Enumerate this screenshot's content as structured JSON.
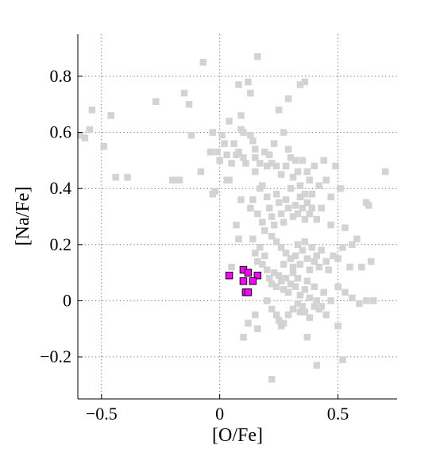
{
  "chart_data": {
    "type": "scatter",
    "title": "",
    "xlabel": "[O/Fe]",
    "ylabel": "[Na/Fe]",
    "xlim": [
      -0.6,
      0.75
    ],
    "ylim": [
      -0.35,
      0.95
    ],
    "grid": true,
    "legend": "none",
    "x_ticks": [
      {
        "value": -0.5,
        "label": "−0.5"
      },
      {
        "value": 0,
        "label": "0"
      },
      {
        "value": 0.5,
        "label": "0.5"
      }
    ],
    "y_ticks": [
      {
        "value": -0.2,
        "label": "−0.2"
      },
      {
        "value": 0,
        "label": "0"
      },
      {
        "value": 0.2,
        "label": "0.2"
      },
      {
        "value": 0.4,
        "label": "0.4"
      },
      {
        "value": 0.6,
        "label": "0.6"
      },
      {
        "value": 0.8,
        "label": "0.8"
      }
    ],
    "series": [
      {
        "color": "#d3d3d3",
        "marker": "square",
        "points": [
          [
            -0.59,
            0.59
          ],
          [
            -0.57,
            0.58
          ],
          [
            -0.55,
            0.61
          ],
          [
            -0.54,
            0.68
          ],
          [
            -0.49,
            0.55
          ],
          [
            -0.46,
            0.66
          ],
          [
            -0.44,
            0.44
          ],
          [
            -0.39,
            0.44
          ],
          [
            -0.27,
            0.71
          ],
          [
            -0.2,
            0.43
          ],
          [
            -0.18,
            0.43
          ],
          [
            -0.17,
            0.43
          ],
          [
            -0.15,
            0.74
          ],
          [
            -0.13,
            0.7
          ],
          [
            -0.12,
            0.59
          ],
          [
            -0.08,
            0.46
          ],
          [
            -0.07,
            0.85
          ],
          [
            -0.04,
            0.53
          ],
          [
            -0.03,
            0.6
          ],
          [
            -0.02,
            0.39
          ],
          [
            -0.01,
            0.53
          ],
          [
            0.0,
            0.5
          ],
          [
            0.01,
            0.59
          ],
          [
            0.02,
            0.56
          ],
          [
            0.03,
            0.52
          ],
          [
            0.04,
            0.64
          ],
          [
            0.04,
            0.43
          ],
          [
            0.05,
            0.49
          ],
          [
            0.06,
            0.56
          ],
          [
            0.07,
            0.52
          ],
          [
            0.08,
            0.77
          ],
          [
            0.08,
            0.53
          ],
          [
            0.09,
            0.66
          ],
          [
            0.09,
            0.61
          ],
          [
            0.1,
            0.6
          ],
          [
            0.1,
            0.51
          ],
          [
            0.11,
            0.49
          ],
          [
            0.12,
            0.78
          ],
          [
            0.13,
            0.74
          ],
          [
            0.13,
            0.59
          ],
          [
            0.14,
            0.57
          ],
          [
            0.15,
            0.54
          ],
          [
            0.15,
            0.51
          ],
          [
            0.15,
            0.46
          ],
          [
            0.16,
            0.87
          ],
          [
            0.17,
            0.49
          ],
          [
            0.18,
            0.41
          ],
          [
            0.19,
            0.53
          ],
          [
            0.2,
            0.48
          ],
          [
            0.21,
            0.52
          ],
          [
            0.22,
            0.49
          ],
          [
            0.23,
            0.56
          ],
          [
            0.24,
            0.48
          ],
          [
            0.25,
            0.68
          ],
          [
            0.26,
            0.45
          ],
          [
            0.27,
            0.6
          ],
          [
            0.28,
            0.48
          ],
          [
            0.29,
            0.54
          ],
          [
            0.3,
            0.51
          ],
          [
            0.31,
            0.44
          ],
          [
            0.32,
            0.5
          ],
          [
            0.33,
            0.46
          ],
          [
            0.34,
            0.41
          ],
          [
            0.35,
            0.5
          ],
          [
            0.36,
            0.78
          ],
          [
            0.37,
            0.46
          ],
          [
            0.38,
            0.43
          ],
          [
            0.39,
            0.38
          ],
          [
            0.4,
            0.48
          ],
          [
            0.42,
            0.41
          ],
          [
            0.44,
            0.5
          ],
          [
            0.45,
            0.43
          ],
          [
            0.49,
            0.48
          ],
          [
            0.7,
            0.46
          ],
          [
            0.17,
            0.4
          ],
          [
            0.14,
            0.36
          ],
          [
            0.13,
            0.33
          ],
          [
            0.16,
            0.31
          ],
          [
            0.18,
            0.28
          ],
          [
            0.19,
            0.25
          ],
          [
            0.2,
            0.37
          ],
          [
            0.21,
            0.33
          ],
          [
            0.22,
            0.3
          ],
          [
            0.23,
            0.27
          ],
          [
            0.24,
            0.38
          ],
          [
            0.25,
            0.35
          ],
          [
            0.26,
            0.31
          ],
          [
            0.27,
            0.28
          ],
          [
            0.28,
            0.36
          ],
          [
            0.29,
            0.33
          ],
          [
            0.3,
            0.4
          ],
          [
            0.31,
            0.3
          ],
          [
            0.32,
            0.34
          ],
          [
            0.33,
            0.31
          ],
          [
            0.34,
            0.37
          ],
          [
            0.35,
            0.33
          ],
          [
            0.36,
            0.38
          ],
          [
            0.37,
            0.35
          ],
          [
            0.38,
            0.31
          ],
          [
            0.36,
            0.29
          ],
          [
            0.39,
            0.33
          ],
          [
            0.41,
            0.29
          ],
          [
            0.43,
            0.33
          ],
          [
            0.47,
            0.27
          ],
          [
            0.51,
            0.4
          ],
          [
            0.53,
            0.26
          ],
          [
            0.56,
            0.2
          ],
          [
            0.58,
            0.22
          ],
          [
            0.62,
            0.35
          ],
          [
            0.63,
            0.34
          ],
          [
            0.09,
            0.36
          ],
          [
            0.07,
            0.27
          ],
          [
            0.08,
            0.22
          ],
          [
            0.03,
            0.43
          ],
          [
            -0.03,
            0.38
          ],
          [
            0.22,
            0.23
          ],
          [
            0.24,
            0.21
          ],
          [
            0.26,
            0.19
          ],
          [
            0.28,
            0.17
          ],
          [
            0.27,
            0.13
          ],
          [
            0.3,
            0.15
          ],
          [
            0.31,
            0.12
          ],
          [
            0.32,
            0.16
          ],
          [
            0.33,
            0.2
          ],
          [
            0.34,
            0.13
          ],
          [
            0.35,
            0.18
          ],
          [
            0.36,
            0.21
          ],
          [
            0.37,
            0.15
          ],
          [
            0.38,
            0.11
          ],
          [
            0.39,
            0.19
          ],
          [
            0.4,
            0.14
          ],
          [
            0.41,
            0.16
          ],
          [
            0.42,
            0.12
          ],
          [
            0.43,
            0.18
          ],
          [
            0.45,
            0.14
          ],
          [
            0.46,
            0.11
          ],
          [
            0.48,
            0.16
          ],
          [
            0.5,
            0.15
          ],
          [
            0.52,
            0.19
          ],
          [
            0.55,
            0.12
          ],
          [
            0.6,
            0.12
          ],
          [
            0.64,
            0.14
          ],
          [
            0.14,
            0.22
          ],
          [
            0.15,
            0.17
          ],
          [
            0.16,
            0.14
          ],
          [
            0.17,
            0.19
          ],
          [
            0.18,
            0.13
          ],
          [
            0.19,
            0.16
          ],
          [
            0.2,
            0.11
          ],
          [
            0.21,
            0.08
          ],
          [
            0.22,
            0.06
          ],
          [
            0.23,
            0.1
          ],
          [
            0.24,
            0.05
          ],
          [
            0.25,
            0.09
          ],
          [
            0.26,
            0.07
          ],
          [
            0.27,
            0.04
          ],
          [
            0.28,
            0.08
          ],
          [
            0.29,
            0.03
          ],
          [
            0.3,
            0.06
          ],
          [
            0.31,
            0.1
          ],
          [
            0.32,
            0.05
          ],
          [
            0.33,
            0.08
          ],
          [
            0.34,
            0.02
          ],
          [
            0.35,
            -0.02
          ],
          [
            0.36,
            0.04
          ],
          [
            0.37,
            0.07
          ],
          [
            0.38,
            0.01
          ],
          [
            0.4,
            0.05
          ],
          [
            0.41,
            0.0
          ],
          [
            0.43,
            -0.02
          ],
          [
            0.44,
            0.03
          ],
          [
            0.47,
            0.0
          ],
          [
            0.5,
            0.05
          ],
          [
            0.53,
            0.03
          ],
          [
            0.56,
            0.01
          ],
          [
            0.59,
            -0.01
          ],
          [
            0.62,
            0.0
          ],
          [
            0.65,
            0.0
          ],
          [
            0.2,
            0.0
          ],
          [
            0.22,
            -0.03
          ],
          [
            0.24,
            -0.05
          ],
          [
            0.25,
            -0.07
          ],
          [
            0.26,
            -0.09
          ],
          [
            0.27,
            -0.08
          ],
          [
            0.29,
            -0.05
          ],
          [
            0.31,
            -0.03
          ],
          [
            0.33,
            -0.01
          ],
          [
            0.34,
            -0.04
          ],
          [
            0.36,
            -0.04
          ],
          [
            0.38,
            -0.06
          ],
          [
            0.4,
            -0.02
          ],
          [
            0.42,
            -0.03
          ],
          [
            0.45,
            -0.05
          ],
          [
            0.5,
            -0.09
          ],
          [
            0.15,
            -0.05
          ],
          [
            0.16,
            -0.1
          ],
          [
            0.1,
            -0.13
          ],
          [
            0.12,
            -0.08
          ],
          [
            0.37,
            -0.13
          ],
          [
            0.41,
            -0.23
          ],
          [
            0.52,
            -0.21
          ],
          [
            0.22,
            -0.28
          ],
          [
            0.29,
            0.72
          ],
          [
            0.34,
            0.77
          ],
          [
            0.47,
            0.37
          ],
          [
            0.05,
            0.12
          ]
        ]
      },
      {
        "color": "#ff00ff",
        "stroke": "#000000",
        "marker": "square",
        "points": [
          [
            0.04,
            0.09
          ],
          [
            0.1,
            0.11
          ],
          [
            0.12,
            0.1
          ],
          [
            0.16,
            0.09
          ],
          [
            0.1,
            0.07
          ],
          [
            0.14,
            0.07
          ],
          [
            0.11,
            0.03
          ],
          [
            0.12,
            0.03
          ]
        ]
      }
    ]
  }
}
